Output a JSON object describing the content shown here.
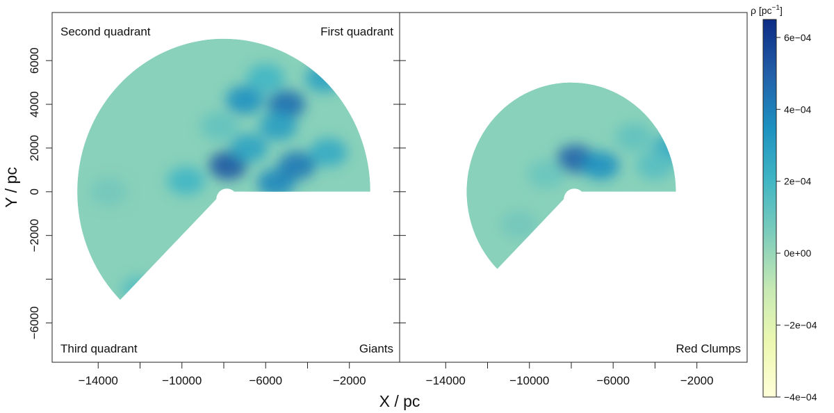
{
  "chart_data": {
    "type": "heatmap",
    "xlabel": "X / pc",
    "ylabel": "Y / pc",
    "xlim": [
      -16200,
      400
    ],
    "ylim": [
      -7800,
      8200
    ],
    "x_ticks": [
      -14000,
      -12000,
      -10000,
      -8000,
      -6000,
      -4000,
      -2000
    ],
    "x_tick_labels": [
      "−14000",
      "",
      "−10000",
      "",
      "−6000",
      "",
      "−2000"
    ],
    "y_ticks": [
      -6000,
      -4000,
      -2000,
      0,
      2000,
      4000,
      6000
    ],
    "y_tick_labels": [
      "−6000",
      "",
      "−2000",
      "0",
      "2000",
      "4000",
      "6000"
    ],
    "grid": false,
    "panels": [
      {
        "id": "giants",
        "center": [
          -8000,
          0
        ],
        "radius": 7000,
        "wedge_deg": [
          0,
          225
        ],
        "corner_labels": {
          "top_left": "Second quadrant",
          "top_right": "First quadrant",
          "bottom_left": "Third quadrant",
          "bottom_right": "Giants"
        },
        "hotspots": [
          {
            "x": -5000,
            "y": 4000,
            "v": 0.00045
          },
          {
            "x": -5400,
            "y": 3000,
            "v": 0.0003
          },
          {
            "x": -7000,
            "y": 4200,
            "v": 0.00035
          },
          {
            "x": -7800,
            "y": 1200,
            "v": 0.00052
          },
          {
            "x": -5500,
            "y": 400,
            "v": 0.00038
          },
          {
            "x": -4500,
            "y": 1200,
            "v": 0.00042
          },
          {
            "x": -6800,
            "y": 2000,
            "v": 0.00028
          },
          {
            "x": -3200,
            "y": 5200,
            "v": 0.00028
          },
          {
            "x": -3000,
            "y": 1800,
            "v": 0.00025
          },
          {
            "x": -6000,
            "y": 5200,
            "v": 0.0002
          },
          {
            "x": -9800,
            "y": 500,
            "v": 0.0002
          },
          {
            "x": -8200,
            "y": 3000,
            "v": 0.00012
          },
          {
            "x": -12000,
            "y": -4500,
            "v": 0.00015
          },
          {
            "x": -13500,
            "y": 0,
            "v": 8e-05
          }
        ]
      },
      {
        "id": "red-clumps",
        "center": [
          -8000,
          0
        ],
        "radius": 5000,
        "wedge_deg": [
          0,
          225
        ],
        "corner_labels": {
          "bottom_right": "Red Clumps"
        },
        "hotspots": [
          {
            "x": -7800,
            "y": 1500,
            "v": 0.00048
          },
          {
            "x": -6600,
            "y": 1200,
            "v": 0.00035
          },
          {
            "x": -3200,
            "y": 2000,
            "v": 0.00025
          },
          {
            "x": -5000,
            "y": 2500,
            "v": 0.00012
          },
          {
            "x": -4000,
            "y": 1200,
            "v": 0.00015
          },
          {
            "x": -10500,
            "y": -1500,
            "v": 8e-05
          },
          {
            "x": -9200,
            "y": 800,
            "v": 0.0001
          }
        ]
      }
    ],
    "colorbar": {
      "title": "ρ [pc",
      "title_sup": "−1",
      "title_close": "]",
      "vmin": -0.0004,
      "vmax": 0.00065,
      "ticks": [
        -0.0004,
        -0.0002,
        0,
        0.0002,
        0.0004,
        0.0006
      ],
      "tick_labels": [
        "−4e−04",
        "−2e−04",
        "0e+00",
        "2e−04",
        "4e−04",
        "6e−04"
      ],
      "colors": [
        "#ffffd9",
        "#edf8b1",
        "#c7e9b4",
        "#7fcdbb",
        "#41b6c4",
        "#1d91c0",
        "#225ea8",
        "#0c2c84"
      ]
    }
  }
}
